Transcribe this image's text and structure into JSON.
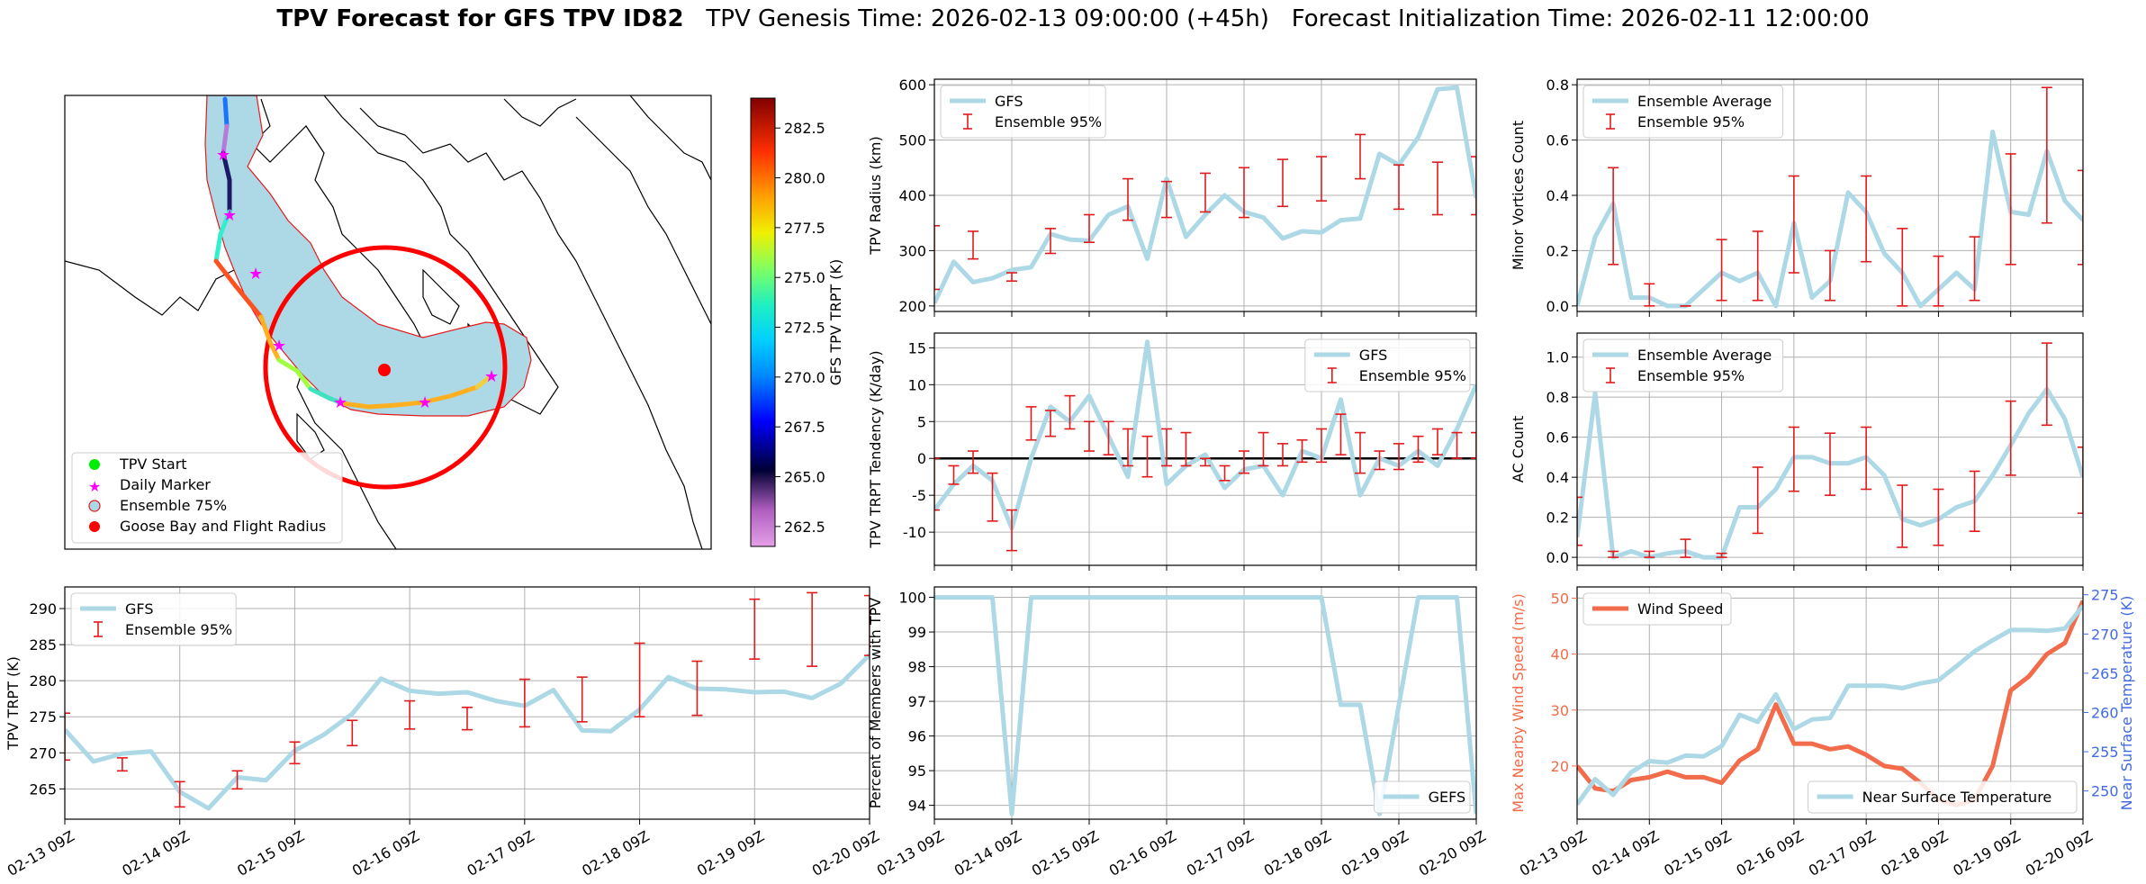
{
  "title": {
    "bold": "TPV Forecast for GFS TPV ID82",
    "genesis": "TPV Genesis Time: 2026-02-13 09:00:00 (+45h)",
    "init": "Forecast Initialization Time: 2026-02-11 12:00:00"
  },
  "colors": {
    "line": "#add8e6",
    "err": "#e31a1c",
    "wind": "#f26b4a",
    "temp_axis": "#4169e1"
  },
  "map": {
    "legend": [
      "TPV Start",
      "Daily Marker",
      "Ensemble 75%",
      "Goose Bay and Flight Radius"
    ],
    "colorbar": {
      "label": "GFS TPV TRPT (K)",
      "ticks": [
        262.5,
        265.0,
        267.5,
        270.0,
        272.5,
        275.0,
        277.5,
        280.0,
        282.5
      ],
      "range": [
        261.5,
        284.0
      ]
    }
  },
  "time_axis": {
    "ticks": [
      "02-13 09Z",
      "02-14 09Z",
      "02-15 09Z",
      "02-16 09Z",
      "02-17 09Z",
      "02-18 09Z",
      "02-19 09Z",
      "02-20 09Z"
    ]
  },
  "chart_data": [
    {
      "id": "radius",
      "type": "line",
      "ylabel": "TPV Radius (km)",
      "ylim": [
        190,
        610
      ],
      "yticks": [
        200,
        300,
        400,
        500,
        600
      ],
      "legend_pos": "upper left",
      "series": [
        {
          "name": "GFS",
          "x": [
            0,
            0.25,
            0.5,
            0.75,
            1,
            1.25,
            1.5,
            1.75,
            2,
            2.25,
            2.5,
            2.75,
            3,
            3.25,
            3.5,
            3.75,
            4,
            4.25,
            4.5,
            4.75,
            5,
            5.25,
            5.5,
            5.75,
            6,
            6.25,
            6.5,
            6.75,
            7
          ],
          "values": [
            205,
            280,
            243,
            250,
            265,
            270,
            330,
            320,
            318,
            365,
            380,
            285,
            430,
            325,
            365,
            400,
            370,
            360,
            322,
            335,
            333,
            355,
            358,
            475,
            455,
            505,
            592,
            595,
            395
          ]
        }
      ],
      "errorbars": {
        "name": "Ensemble 95%",
        "x": [
          0,
          0.5,
          1,
          1.5,
          2,
          2.5,
          3,
          3.5,
          4,
          4.5,
          5,
          5.5,
          6,
          6.5,
          7
        ],
        "low": [
          230,
          285,
          245,
          295,
          315,
          355,
          360,
          370,
          360,
          380,
          390,
          430,
          375,
          365,
          365
        ],
        "high": [
          345,
          335,
          260,
          340,
          365,
          430,
          425,
          440,
          450,
          465,
          470,
          510,
          455,
          460,
          470
        ]
      }
    },
    {
      "id": "tendency",
      "type": "line",
      "ylabel": "TPV TRPT Tendency (K/day)",
      "ylim": [
        -14.5,
        17
      ],
      "yticks": [
        -10,
        -5,
        0,
        5,
        10,
        15
      ],
      "legend_pos": "upper right",
      "series": [
        {
          "name": "GFS",
          "x": [
            0,
            0.25,
            0.5,
            0.75,
            1,
            1.25,
            1.5,
            1.75,
            2,
            2.25,
            2.5,
            2.75,
            3,
            3.25,
            3.5,
            3.75,
            4,
            4.25,
            4.5,
            4.75,
            5,
            5.25,
            5.5,
            5.75,
            6,
            6.25,
            6.5,
            6.75,
            7
          ],
          "values": [
            -7,
            -3.5,
            -1,
            -3,
            -9.5,
            0,
            7,
            5,
            8.5,
            3,
            -2.5,
            15.8,
            -3.5,
            -1,
            0.5,
            -4,
            -1.5,
            -1,
            -5,
            1,
            0,
            8,
            -5,
            0,
            -1,
            1,
            -1,
            4,
            10
          ]
        }
      ],
      "errorbars": {
        "name": "Ensemble 95%",
        "x": [
          0,
          0.25,
          0.5,
          0.75,
          1,
          1.25,
          1.5,
          1.75,
          2,
          2.25,
          2.5,
          2.75,
          3,
          3.25,
          3.5,
          3.75,
          4,
          4.25,
          4.5,
          4.75,
          5,
          5.25,
          5.5,
          5.75,
          6,
          6.25,
          6.5,
          6.75,
          7
        ],
        "low": [
          -7,
          -3.5,
          -2,
          -8.5,
          -12.5,
          2.5,
          3,
          4,
          1,
          0.5,
          -1,
          -2.5,
          -1,
          -1,
          -1,
          -3,
          -2,
          -1,
          -1,
          -0.5,
          -0.5,
          0.5,
          -2,
          -1.5,
          -1.5,
          -0.5,
          0.5,
          0,
          0
        ],
        "high": [
          0,
          -1,
          1,
          -2,
          -7,
          7,
          6.5,
          8.5,
          5,
          5,
          4,
          3,
          4,
          3.5,
          0,
          -1,
          1,
          3.5,
          2,
          2.5,
          4,
          6,
          3.5,
          1,
          2,
          3,
          4,
          3.5,
          3.5
        ]
      },
      "zero_line": true
    },
    {
      "id": "pct",
      "type": "line",
      "ylabel": "Percent of Members with TPV",
      "ylim": [
        93.6,
        100.3
      ],
      "yticks": [
        94,
        95,
        96,
        97,
        98,
        99,
        100
      ],
      "legend_pos": "lower right",
      "series": [
        {
          "name": "GEFS",
          "x": [
            0,
            0.25,
            0.5,
            0.75,
            1,
            1.25,
            1.5,
            1.75,
            2,
            2.25,
            2.5,
            2.75,
            3,
            3.25,
            3.5,
            3.75,
            4,
            4.25,
            4.5,
            4.75,
            5,
            5.25,
            5.5,
            5.75,
            6,
            6.25,
            6.5,
            6.75,
            7
          ],
          "values": [
            100,
            100,
            100,
            100,
            93.75,
            100,
            100,
            100,
            100,
            100,
            100,
            100,
            100,
            100,
            100,
            100,
            100,
            100,
            100,
            100,
            100,
            96.9,
            96.9,
            93.75,
            96.9,
            100,
            100,
            100,
            93.75
          ]
        }
      ]
    },
    {
      "id": "minor",
      "type": "line",
      "ylabel": "Minor Vortices Count",
      "ylim": [
        -0.02,
        0.82
      ],
      "yticks": [
        0.0,
        0.2,
        0.4,
        0.6,
        0.8
      ],
      "legend_pos": "upper left",
      "series": [
        {
          "name": "Ensemble Average",
          "x": [
            0,
            0.25,
            0.5,
            0.75,
            1,
            1.25,
            1.5,
            1.75,
            2,
            2.25,
            2.5,
            2.75,
            3,
            3.25,
            3.5,
            3.75,
            4,
            4.25,
            4.5,
            4.75,
            5,
            5.25,
            5.5,
            5.75,
            6,
            6.25,
            6.5,
            6.75,
            7
          ],
          "values": [
            0,
            0.25,
            0.37,
            0.03,
            0.03,
            0,
            0,
            0.06,
            0.12,
            0.09,
            0.12,
            0,
            0.3,
            0.03,
            0.09,
            0.41,
            0.34,
            0.19,
            0.12,
            0,
            0.06,
            0.12,
            0.06,
            0.63,
            0.34,
            0.33,
            0.56,
            0.38,
            0.31
          ]
        }
      ],
      "errorbars": {
        "name": "Ensemble 95%",
        "x": [
          0.5,
          1,
          1.5,
          2,
          2.5,
          3,
          3.5,
          4,
          4.5,
          5,
          5.5,
          6,
          6.5,
          7
        ],
        "low": [
          0.15,
          0,
          0,
          0.02,
          0.02,
          0.12,
          0.02,
          0.16,
          0,
          0,
          0.02,
          0.15,
          0.3,
          0.15
        ],
        "high": [
          0.5,
          0.08,
          0,
          0.24,
          0.27,
          0.47,
          0.2,
          0.47,
          0.28,
          0.18,
          0.25,
          0.55,
          0.79,
          0.49
        ]
      }
    },
    {
      "id": "ac",
      "type": "line",
      "ylabel": "AC Count",
      "ylim": [
        -0.04,
        1.12
      ],
      "yticks": [
        0.0,
        0.2,
        0.4,
        0.6,
        0.8,
        1.0
      ],
      "legend_pos": "upper left",
      "series": [
        {
          "name": "Ensemble Average",
          "x": [
            0,
            0.25,
            0.5,
            0.75,
            1,
            1.25,
            1.5,
            1.75,
            2,
            2.25,
            2.5,
            2.75,
            3,
            3.25,
            3.5,
            3.75,
            4,
            4.25,
            4.5,
            4.75,
            5,
            5.25,
            5.5,
            5.75,
            6,
            6.25,
            6.5,
            6.75,
            7
          ],
          "values": [
            0.1,
            0.82,
            0.0,
            0.03,
            0.0,
            0.02,
            0.03,
            0.0,
            0.0,
            0.25,
            0.25,
            0.34,
            0.5,
            0.5,
            0.47,
            0.47,
            0.5,
            0.41,
            0.19,
            0.16,
            0.19,
            0.25,
            0.28,
            0.41,
            0.56,
            0.72,
            0.84,
            0.69,
            0.4
          ]
        }
      ],
      "errorbars": {
        "name": "Ensemble 95%",
        "x": [
          0,
          0.5,
          1,
          1.5,
          2,
          2.5,
          3,
          3.5,
          4,
          4.5,
          5,
          5.5,
          6,
          6.5,
          7
        ],
        "low": [
          0.06,
          0,
          0,
          0,
          0,
          0.12,
          0.33,
          0.31,
          0.34,
          0.05,
          0.06,
          0.13,
          0.41,
          0.66,
          0.22
        ],
        "high": [
          0.3,
          0.03,
          0.03,
          0.09,
          0.02,
          0.45,
          0.65,
          0.62,
          0.65,
          0.36,
          0.34,
          0.43,
          0.78,
          1.07,
          0.55
        ]
      }
    },
    {
      "id": "trpt",
      "type": "line",
      "ylabel": "TPV TRPT (K)",
      "ylim": [
        260.8,
        293
      ],
      "yticks": [
        265,
        270,
        275,
        280,
        285,
        290
      ],
      "legend_pos": "upper left",
      "series": [
        {
          "name": "GFS",
          "x": [
            0,
            0.25,
            0.5,
            0.75,
            1,
            1.25,
            1.5,
            1.75,
            2,
            2.25,
            2.5,
            2.75,
            3,
            3.25,
            3.5,
            3.75,
            4,
            4.25,
            4.5,
            4.75,
            5,
            5.25,
            5.5,
            5.75,
            6,
            6.25,
            6.5,
            6.75,
            7
          ],
          "values": [
            273.2,
            268.8,
            269.9,
            270.2,
            264.6,
            262.3,
            266.6,
            266.2,
            270.3,
            272.5,
            275.4,
            280.3,
            278.6,
            278.2,
            278.4,
            277.2,
            276.5,
            278.7,
            273.1,
            273,
            276,
            280.5,
            278.9,
            278.8,
            278.4,
            278.5,
            277.6,
            279.6,
            283.6
          ]
        }
      ],
      "errorbars": {
        "name": "Ensemble 95%",
        "x": [
          0,
          0.5,
          1,
          1.5,
          2,
          2.5,
          3,
          3.5,
          4,
          4.5,
          5,
          5.5,
          6,
          6.5,
          7
        ],
        "low": [
          269,
          267.5,
          262.5,
          265,
          268.5,
          271,
          273.3,
          273.2,
          273.6,
          274.3,
          275,
          275.2,
          283,
          282,
          283.5
        ],
        "high": [
          275.5,
          269.3,
          266,
          267.5,
          271.5,
          274.5,
          277.2,
          276.3,
          280.2,
          280.5,
          285.2,
          282.7,
          291.3,
          292.2,
          291.8
        ]
      }
    },
    {
      "id": "wind",
      "type": "line",
      "ylabel": "Max Nearby Wind Speed (m/s)",
      "ylim": [
        10.5,
        52
      ],
      "yticks": [
        20,
        30,
        40,
        50
      ],
      "legend_pos": "upper left",
      "y2label": "Near Surface Temperature (K)",
      "y2lim": [
        246.4,
        276
      ],
      "y2ticks": [
        250,
        255,
        260,
        265,
        270,
        275
      ],
      "series": [
        {
          "name": "Wind Speed",
          "axis": "left",
          "x": [
            0,
            0.25,
            0.5,
            0.75,
            1,
            1.25,
            1.5,
            1.75,
            2,
            2.25,
            2.5,
            2.75,
            3,
            3.25,
            3.5,
            3.75,
            4,
            4.25,
            4.5,
            4.75,
            5,
            5.25,
            5.5,
            5.75,
            6,
            6.25,
            6.5,
            6.75,
            7
          ],
          "values": [
            20,
            16,
            15.5,
            17.5,
            18,
            19,
            18,
            18,
            17,
            21,
            23,
            31,
            24,
            24,
            23,
            23.5,
            22,
            20,
            19.5,
            17,
            14,
            13,
            14,
            20,
            33.5,
            36,
            40,
            42,
            49.5
          ]
        },
        {
          "name": "Near Surface Temperature",
          "axis": "right",
          "x": [
            0,
            0.25,
            0.5,
            0.75,
            1,
            1.25,
            1.5,
            1.75,
            2,
            2.25,
            2.5,
            2.75,
            3,
            3.25,
            3.5,
            3.75,
            4,
            4.25,
            4.5,
            4.75,
            5,
            5.25,
            5.5,
            5.75,
            6,
            6.25,
            6.5,
            6.75,
            7
          ],
          "values": [
            248.3,
            251.5,
            249.5,
            252.4,
            253.8,
            253.6,
            254.5,
            254.4,
            255.7,
            259.7,
            258.8,
            262.3,
            257.9,
            259.1,
            259.3,
            263.4,
            263.4,
            263.4,
            263.1,
            263.7,
            264.1,
            265.9,
            267.8,
            269.2,
            270.5,
            270.5,
            270.4,
            270.7,
            273.6
          ]
        }
      ]
    }
  ]
}
